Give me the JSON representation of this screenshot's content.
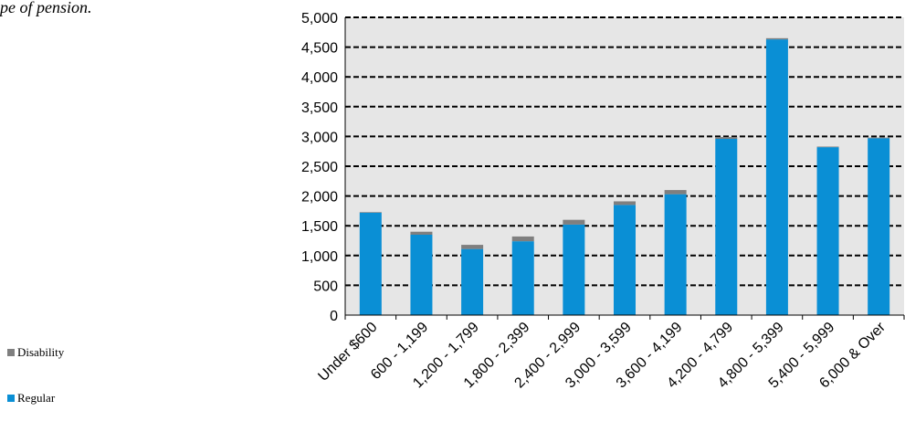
{
  "caption": "pe of pension.",
  "colors": {
    "plot_bg": "#e6e6e6",
    "regular": "#0a8fd5",
    "disability": "#7f7f7f"
  },
  "legend": [
    {
      "name": "Disability",
      "color": "#7f7f7f"
    },
    {
      "name": "Regular",
      "color": "#0a8fd5"
    }
  ],
  "chart_data": {
    "type": "bar",
    "stacked": true,
    "categories": [
      "Under $600",
      "600 - 1,199",
      "1,200 - 1,799",
      "1,800 - 2,399",
      "2,400 - 2,999",
      "3,000 - 3,599",
      "3,600 - 4,199",
      "4,200 - 4,799",
      "4,800 - 5,399",
      "5,400 - 5,999",
      "6,000 & Over"
    ],
    "series": [
      {
        "name": "Regular",
        "values": [
          1720,
          1350,
          1110,
          1240,
          1520,
          1850,
          2030,
          2960,
          4630,
          2820,
          2970
        ]
      },
      {
        "name": "Disability",
        "values": [
          10,
          50,
          70,
          80,
          80,
          60,
          70,
          30,
          20,
          10,
          10
        ]
      }
    ],
    "ylim": [
      0,
      5000
    ],
    "yticks": [
      0,
      500,
      1000,
      1500,
      2000,
      2500,
      3000,
      3500,
      4000,
      4500,
      5000
    ],
    "ytick_labels": [
      "0",
      "500",
      "1,000",
      "1,500",
      "2,000",
      "2,500",
      "3,000",
      "3,500",
      "4,000",
      "4,500",
      "5,000"
    ],
    "grid": true,
    "legend_position": "bottom-left"
  }
}
